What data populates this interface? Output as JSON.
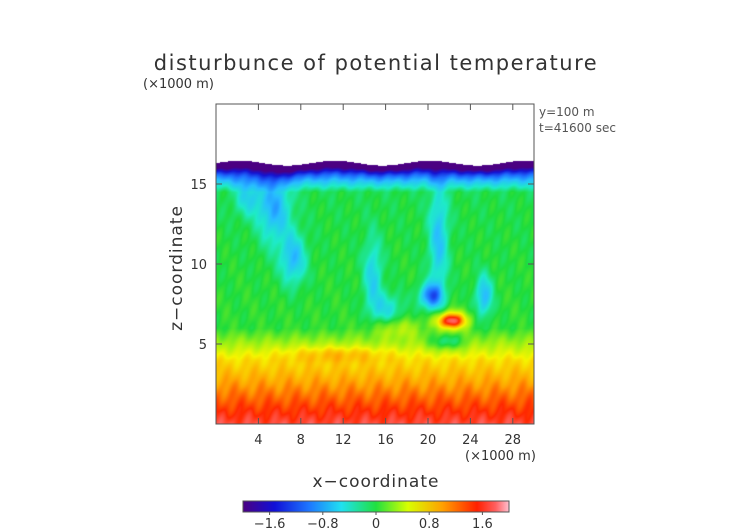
{
  "chart_data": {
    "type": "heatmap",
    "title": "disturbunce of potential temperature",
    "xlabel": "x−coordinate",
    "ylabel": "z−coordinate",
    "x_unit": "(×1000 m)",
    "z_unit": "(×1000 m)",
    "annotations": [
      "y=100 m",
      "t=41600 sec"
    ],
    "xlim": [
      0,
      30
    ],
    "zlim": [
      0,
      20
    ],
    "x_ticks": [
      4,
      8,
      12,
      16,
      20,
      24,
      28
    ],
    "z_ticks": [
      5,
      10,
      15
    ],
    "data_top_z": 16.3,
    "colorbar": {
      "range": [
        -2.0,
        2.0
      ],
      "ticks": [
        -1.6,
        -0.8,
        0,
        0.8,
        1.6
      ],
      "tick_labels": [
        "−1.6",
        "−0.8",
        "0",
        "0.8",
        "1.6"
      ]
    },
    "features": [
      {
        "kind": "warm_bubble",
        "x": 22.2,
        "z": 6.6,
        "value": 1.9
      },
      {
        "kind": "cold_anomaly",
        "x": 20.8,
        "z": 8.0,
        "value": -1.2
      },
      {
        "kind": "cold_tongue",
        "x": 21.0,
        "z": 12.0,
        "value": -0.8
      },
      {
        "kind": "cold_plume",
        "x": 6.5,
        "z": 10.5,
        "value": -0.8
      },
      {
        "kind": "cold_plume",
        "x": 15.0,
        "z": 9.0,
        "value": -0.6
      },
      {
        "kind": "cold_layer_top",
        "z": 16.0,
        "value": -1.8
      }
    ]
  }
}
